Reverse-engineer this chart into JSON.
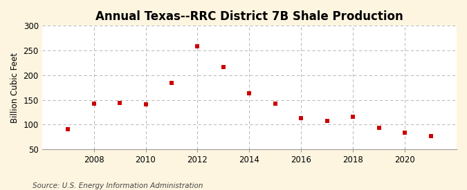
{
  "title": "Annual Texas--RRC District 7B Shale Production",
  "ylabel": "Billion Cubic Feet",
  "source": "Source: U.S. Energy Information Administration",
  "years": [
    2007,
    2008,
    2009,
    2010,
    2011,
    2012,
    2013,
    2014,
    2015,
    2016,
    2017,
    2018,
    2019,
    2020,
    2021
  ],
  "values": [
    90,
    142,
    144,
    141,
    184,
    258,
    216,
    163,
    143,
    113,
    107,
    116,
    93,
    84,
    76
  ],
  "marker_color": "#cc0000",
  "marker": "s",
  "marker_size": 18,
  "figure_bg_color": "#fdf5e0",
  "axes_bg_color": "#ffffff",
  "grid_color": "#aaaaaa",
  "ylim": [
    50,
    300
  ],
  "yticks": [
    50,
    100,
    150,
    200,
    250,
    300
  ],
  "xticks": [
    2008,
    2010,
    2012,
    2014,
    2016,
    2018,
    2020
  ],
  "xlim": [
    2006.0,
    2022.0
  ],
  "title_fontsize": 12,
  "label_fontsize": 8.5,
  "tick_fontsize": 8.5,
  "source_fontsize": 7.5
}
